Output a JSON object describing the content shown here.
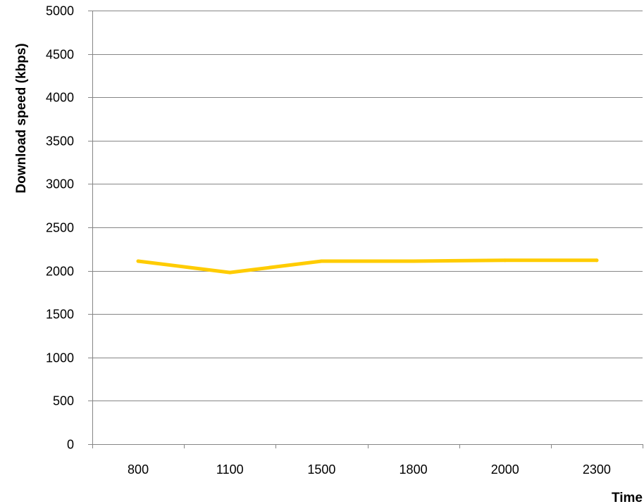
{
  "chart_data": {
    "type": "line",
    "xlabel": "Time",
    "ylabel": "Download speed (kbps)",
    "categories": [
      "800",
      "1100",
      "1500",
      "1800",
      "2000",
      "2300"
    ],
    "series": [
      {
        "values": [
          2110,
          1980,
          2110,
          2110,
          2120,
          2120
        ],
        "color": "#FFCC00"
      }
    ],
    "ylim": [
      0,
      5000
    ],
    "yticks": [
      0,
      500,
      1000,
      1500,
      2000,
      2500,
      3000,
      3500,
      4000,
      4500,
      5000
    ],
    "grid": true,
    "gridColor": "#868686",
    "legend": "none"
  }
}
